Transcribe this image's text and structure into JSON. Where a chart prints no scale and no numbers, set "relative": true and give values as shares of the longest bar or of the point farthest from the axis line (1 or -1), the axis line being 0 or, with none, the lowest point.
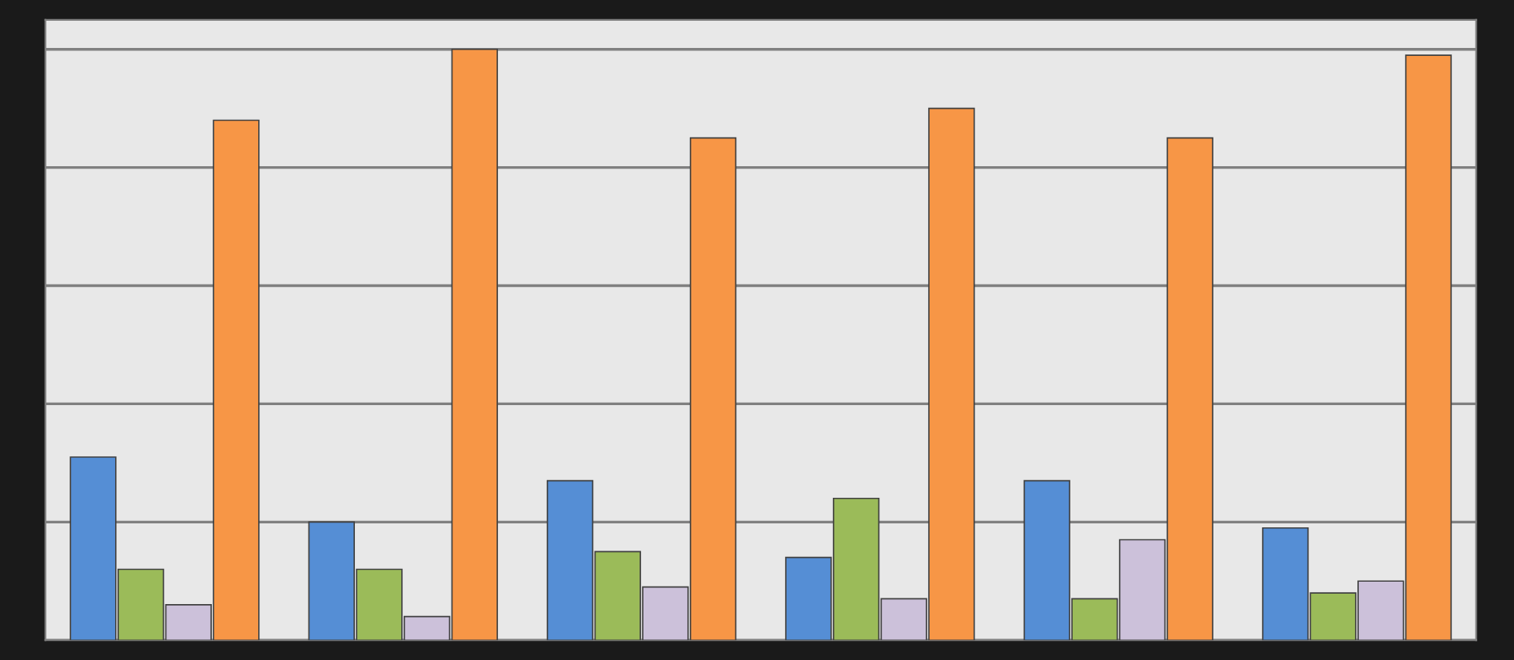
{
  "chart_data": {
    "type": "bar",
    "relative": true,
    "grid": "y",
    "categories": [
      null,
      null,
      null,
      null,
      null,
      null
    ],
    "series": [
      {
        "color": "#558ed5",
        "values": [
          0.31,
          0.2,
          0.27,
          0.14,
          0.27,
          0.19
        ]
      },
      {
        "color": "#9bbb59",
        "values": [
          0.12,
          0.12,
          0.15,
          0.24,
          0.07,
          0.08
        ]
      },
      {
        "color": "#ccc1da",
        "values": [
          0.06,
          0.04,
          0.09,
          0.07,
          0.17,
          0.1
        ]
      },
      {
        "color": "#f79646",
        "values": [
          0.88,
          1,
          0.85,
          0.9,
          0.85,
          0.99
        ]
      }
    ]
  }
}
